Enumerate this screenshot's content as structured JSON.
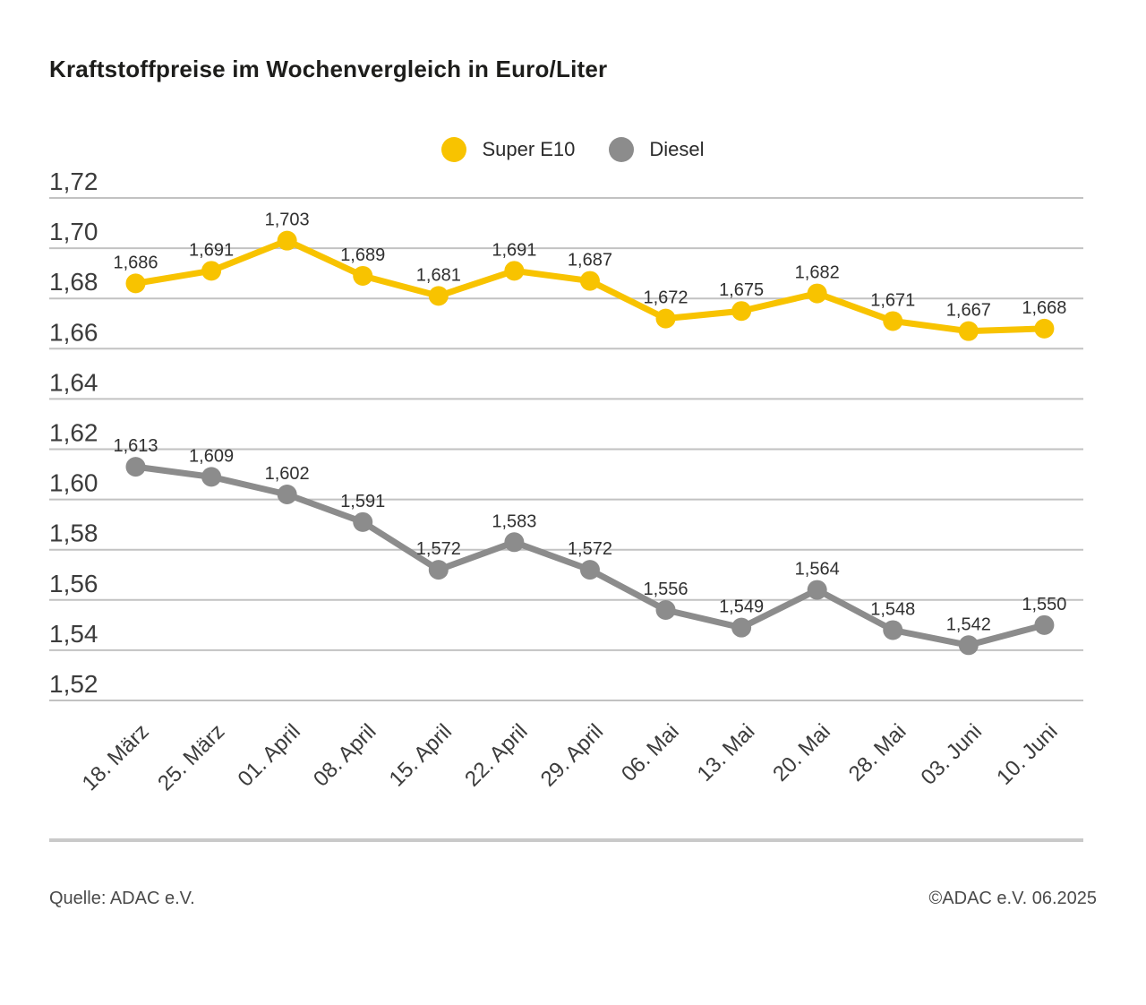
{
  "title": "Kraftstoffpreise im Wochenvergleich in Euro/Liter",
  "legend": [
    {
      "label": "Super E10",
      "color": "#F8C300"
    },
    {
      "label": "Diesel",
      "color": "#8C8C8C"
    }
  ],
  "footer": {
    "source": "Quelle: ADAC e.V.",
    "copyright": "©ADAC e.V. 06.2025"
  },
  "colors": {
    "super_e10": "#F8C300",
    "diesel": "#8C8C8C",
    "gridline": "#c2c2c2",
    "axis_text": "#3c3c3c",
    "point_label_text": "#303030"
  },
  "chart_data": {
    "type": "line",
    "title": "Kraftstoffpreise im Wochenvergleich in Euro/Liter",
    "xlabel": "",
    "ylabel": "Euro/Liter",
    "categories": [
      "18. März",
      "25. März",
      "01. April",
      "08. April",
      "15. April",
      "22. April",
      "29. April",
      "06. Mai",
      "13. Mai",
      "20. Mai",
      "28. Mai",
      "03. Juni",
      "10. Juni"
    ],
    "series": [
      {
        "name": "Super E10",
        "color": "#F8C300",
        "values": [
          1.686,
          1.691,
          1.703,
          1.689,
          1.681,
          1.691,
          1.687,
          1.672,
          1.675,
          1.682,
          1.671,
          1.667,
          1.668
        ]
      },
      {
        "name": "Diesel",
        "color": "#8C8C8C",
        "values": [
          1.613,
          1.609,
          1.602,
          1.591,
          1.572,
          1.583,
          1.572,
          1.556,
          1.549,
          1.564,
          1.548,
          1.542,
          1.55
        ]
      }
    ],
    "ylim": [
      1.52,
      1.72
    ],
    "ytick_step": 0.02,
    "ytick_labels": [
      "1,72",
      "1,70",
      "1,68",
      "1,66",
      "1,64",
      "1,62",
      "1,60",
      "1,58",
      "1,56",
      "1,54",
      "1,52"
    ],
    "grid": true,
    "legend_position": "top-center",
    "value_labels": true,
    "decimal_separator": ","
  }
}
